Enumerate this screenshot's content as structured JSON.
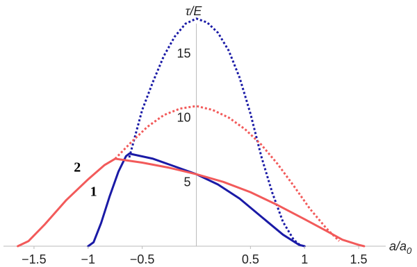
{
  "chart_data": {
    "type": "line",
    "ylabel": "τ/E",
    "xlabel_main": "a/a",
    "xlabel_sub": "0",
    "xlim": [
      -1.75,
      1.75
    ],
    "ylim": [
      0,
      18.5
    ],
    "x_ticks": [
      {
        "value": -1.5,
        "label": "−1.5"
      },
      {
        "value": -1,
        "label": "−1"
      },
      {
        "value": -0.5,
        "label": "−0.5"
      },
      {
        "value": 0.5,
        "label": "0.5"
      },
      {
        "value": 1,
        "label": "1"
      },
      {
        "value": 1.5,
        "label": "1.5"
      }
    ],
    "y_ticks": [
      {
        "value": 5,
        "label": "5"
      },
      {
        "value": 10,
        "label": "10"
      },
      {
        "value": 15,
        "label": "15"
      }
    ],
    "colors": {
      "blue": "#1a1aa6",
      "red": "#f25a5a",
      "axis": "#bbbbbb"
    },
    "series": [
      {
        "color": "blue",
        "style": "dotted",
        "points": [
          [
            -0.62,
            6.9
          ],
          [
            -0.5,
            10.6
          ],
          [
            -0.4,
            12.8
          ],
          [
            -0.3,
            14.8
          ],
          [
            -0.2,
            16.3
          ],
          [
            -0.1,
            17.3
          ],
          [
            0,
            17.7
          ],
          [
            0.1,
            17.4
          ],
          [
            0.2,
            16.6
          ],
          [
            0.3,
            15.2
          ],
          [
            0.4,
            13.1
          ],
          [
            0.5,
            10.3
          ],
          [
            0.6,
            7.0
          ],
          [
            0.7,
            4.2
          ],
          [
            0.8,
            1.9
          ],
          [
            0.9,
            0.5
          ],
          [
            0.97,
            0
          ]
        ]
      },
      {
        "color": "blue",
        "style": "solid",
        "points": [
          [
            -1,
            0
          ],
          [
            -0.95,
            0.3
          ],
          [
            -0.88,
            1.8
          ],
          [
            -0.8,
            3.9
          ],
          [
            -0.72,
            5.8
          ],
          [
            -0.65,
            7.0
          ],
          [
            -0.62,
            7.2
          ],
          [
            -0.4,
            6.8
          ],
          [
            -0.2,
            6.2
          ],
          [
            0,
            5.6
          ],
          [
            0.2,
            4.8
          ],
          [
            0.4,
            3.7
          ],
          [
            0.6,
            2.3
          ],
          [
            0.8,
            0.9
          ],
          [
            0.95,
            0.1
          ],
          [
            1,
            0
          ]
        ]
      },
      {
        "color": "red",
        "style": "dotted",
        "points": [
          [
            -0.75,
            6.8
          ],
          [
            -0.6,
            8.1
          ],
          [
            -0.45,
            9.3
          ],
          [
            -0.3,
            10.2
          ],
          [
            -0.15,
            10.7
          ],
          [
            0,
            10.9
          ],
          [
            0.15,
            10.6
          ],
          [
            0.3,
            10.0
          ],
          [
            0.45,
            9.1
          ],
          [
            0.6,
            7.9
          ],
          [
            0.75,
            6.4
          ],
          [
            0.9,
            4.7
          ],
          [
            1.05,
            2.9
          ],
          [
            1.2,
            1.4
          ],
          [
            1.32,
            0.4
          ]
        ]
      },
      {
        "color": "red",
        "style": "solid",
        "points": [
          [
            -1.65,
            0
          ],
          [
            -1.55,
            0.4
          ],
          [
            -1.4,
            1.7
          ],
          [
            -1.2,
            3.6
          ],
          [
            -1.0,
            5.2
          ],
          [
            -0.85,
            6.3
          ],
          [
            -0.75,
            6.8
          ],
          [
            -0.5,
            6.5
          ],
          [
            -0.25,
            6.1
          ],
          [
            0,
            5.6
          ],
          [
            0.25,
            5.0
          ],
          [
            0.5,
            4.2
          ],
          [
            0.75,
            3.2
          ],
          [
            1.0,
            2.1
          ],
          [
            1.2,
            1.2
          ],
          [
            1.35,
            0.5
          ],
          [
            1.5,
            0.1
          ],
          [
            1.55,
            0
          ]
        ]
      }
    ],
    "labels": [
      {
        "text": "1",
        "x": -0.95,
        "y": 3.9
      },
      {
        "text": "2",
        "x": -1.1,
        "y": 5.8
      }
    ]
  }
}
